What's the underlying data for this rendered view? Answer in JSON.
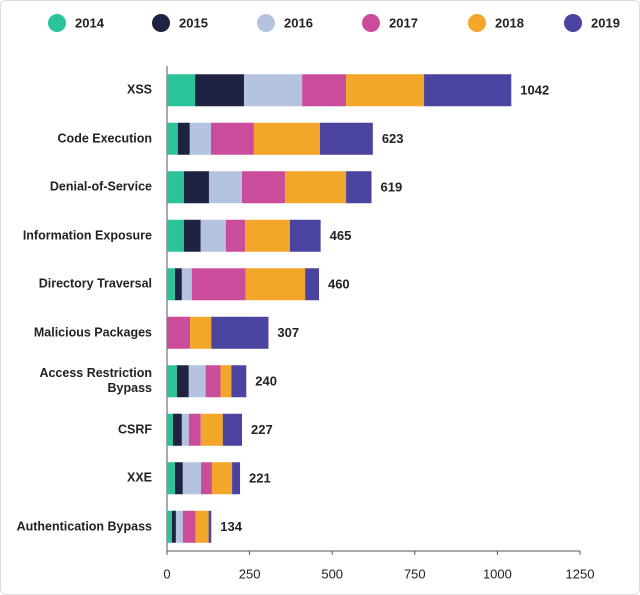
{
  "chart_data": {
    "type": "stacked-barh",
    "categories": [
      "XSS",
      "Code Execution",
      "Denial-of-Service",
      "Information Exposure",
      "Directory Traversal",
      "Malicious Packages",
      "Access Restriction\nBypass",
      "CSRF",
      "XXE",
      "Authentication Bypass"
    ],
    "series": [
      {
        "name": "2014",
        "color": "#2bc49a",
        "values": [
          85,
          33,
          51,
          51,
          24,
          0,
          30,
          18,
          24,
          15
        ]
      },
      {
        "name": "2015",
        "color": "#1f2240",
        "values": [
          148,
          36,
          76,
          51,
          21,
          0,
          36,
          27,
          24,
          12
        ]
      },
      {
        "name": "2016",
        "color": "#b4c3e0",
        "values": [
          176,
          64,
          100,
          76,
          30,
          0,
          51,
          21,
          55,
          21
        ]
      },
      {
        "name": "2017",
        "color": "#cc4c9c",
        "values": [
          133,
          130,
          130,
          58,
          163,
          70,
          45,
          36,
          33,
          39
        ]
      },
      {
        "name": "2018",
        "color": "#f2a62a",
        "values": [
          236,
          200,
          185,
          136,
          180,
          64,
          33,
          67,
          61,
          39
        ]
      },
      {
        "name": "2019",
        "color": "#4a44a0",
        "values": [
          264,
          160,
          77,
          93,
          42,
          173,
          45,
          58,
          24,
          8
        ]
      }
    ],
    "totals": [
      1042,
      623,
      619,
      465,
      460,
      307,
      240,
      227,
      221,
      134
    ],
    "xlim": [
      0,
      1250
    ],
    "xticks": [
      0,
      250,
      500,
      750,
      1000,
      1250
    ],
    "legend": "top"
  }
}
